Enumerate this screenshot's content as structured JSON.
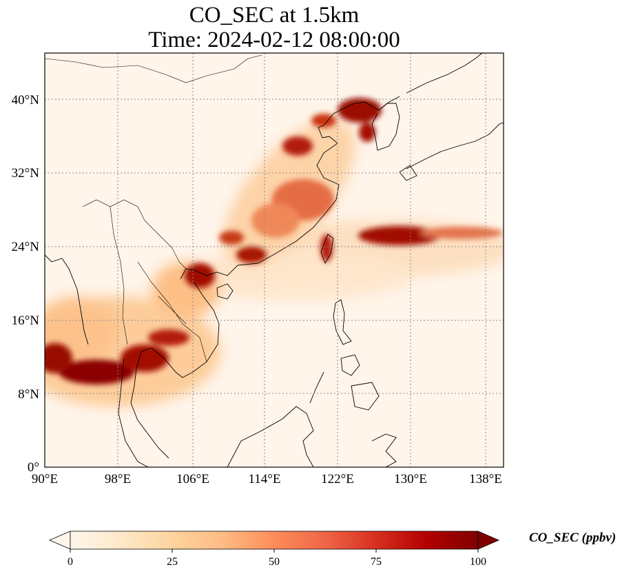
{
  "title": {
    "line1": "CO_SEC at 1.5km",
    "line2": "Time: 2024-02-12 08:00:00"
  },
  "map": {
    "projection": "PlateCarree",
    "lon_range": [
      90,
      139
    ],
    "lat_range": [
      0,
      44.5
    ],
    "gridlines": "dotted",
    "lon_ticks": [
      "90°E",
      "98°E",
      "106°E",
      "114°E",
      "122°E",
      "130°E",
      "138°E"
    ],
    "lat_ticks": [
      "0°",
      "8°N",
      "16°N",
      "24°N",
      "32°N",
      "40°N"
    ],
    "colormap": "OrRd",
    "colors": {
      "low": "#fff7ec",
      "mid": "#fdbb84",
      "high": "#7f0000"
    },
    "plumes": [
      {
        "name": "korea-north-china",
        "lon": 124,
        "lat": 39,
        "intensity": 95
      },
      {
        "name": "east-china-plain",
        "lon": 117,
        "lat": 34,
        "intensity": 85
      },
      {
        "name": "yangtze-south-china",
        "lon": 113,
        "lat": 27,
        "intensity": 65
      },
      {
        "name": "south-china-coast",
        "lon": 113,
        "lat": 23,
        "intensity": 80
      },
      {
        "name": "gulf-of-tonkin",
        "lon": 107,
        "lat": 20,
        "intensity": 95
      },
      {
        "name": "taiwan",
        "lon": 121,
        "lat": 24,
        "intensity": 85
      },
      {
        "name": "pacific-outflow",
        "lon": 128,
        "lat": 25,
        "intensity": 95
      },
      {
        "name": "indochina",
        "lon": 100,
        "lat": 11,
        "intensity": 100
      },
      {
        "name": "bay-of-bengal",
        "lon": 92,
        "lat": 12,
        "intensity": 100
      },
      {
        "name": "laos-thailand",
        "lon": 104,
        "lat": 14,
        "intensity": 85
      }
    ]
  },
  "colorbar": {
    "label": "CO_SEC (ppbv)",
    "range": [
      0,
      100
    ],
    "ticks": [
      "0",
      "25",
      "50",
      "75",
      "100"
    ],
    "extend": "both"
  }
}
